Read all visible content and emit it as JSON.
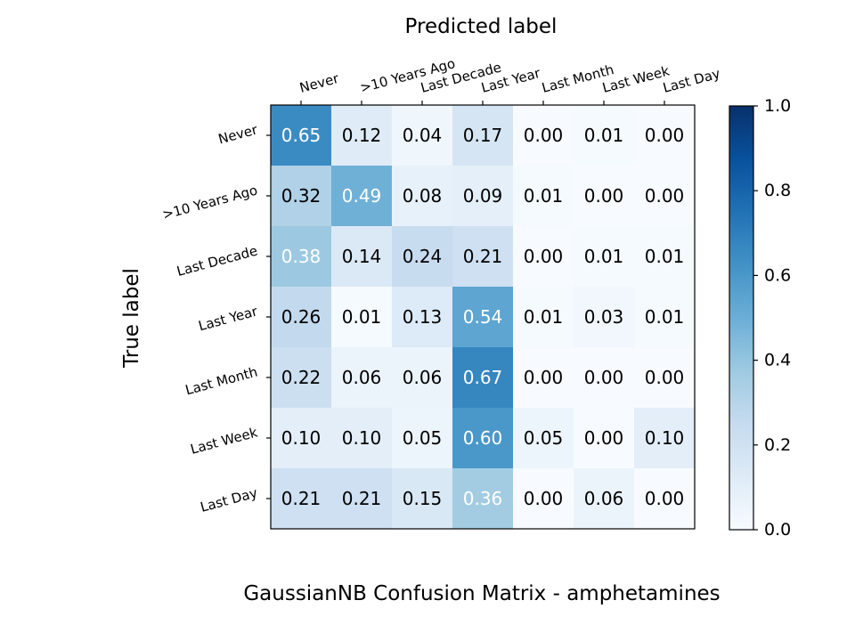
{
  "chart_data": {
    "type": "heatmap",
    "title": "GaussianNB Confusion Matrix - amphetamines",
    "xlabel": "Predicted label",
    "ylabel": "True label",
    "x_categories": [
      "Never",
      ">10 Years Ago",
      "Last Decade",
      "Last Year",
      "Last Month",
      "Last Week",
      "Last Day"
    ],
    "y_categories": [
      "Never",
      ">10 Years Ago",
      "Last Decade",
      "Last Year",
      "Last Month",
      "Last Week",
      "Last Day"
    ],
    "values": [
      [
        0.65,
        0.12,
        0.04,
        0.17,
        0.0,
        0.01,
        0.0
      ],
      [
        0.32,
        0.49,
        0.08,
        0.09,
        0.01,
        0.0,
        0.0
      ],
      [
        0.38,
        0.14,
        0.24,
        0.21,
        0.0,
        0.01,
        0.01
      ],
      [
        0.26,
        0.01,
        0.13,
        0.54,
        0.01,
        0.03,
        0.01
      ],
      [
        0.22,
        0.06,
        0.06,
        0.67,
        0.0,
        0.0,
        0.0
      ],
      [
        0.1,
        0.1,
        0.05,
        0.6,
        0.05,
        0.0,
        0.1
      ],
      [
        0.21,
        0.21,
        0.15,
        0.36,
        0.0,
        0.06,
        0.0
      ]
    ],
    "colormap": "Blues",
    "colorbar": {
      "range": [
        0.0,
        1.0
      ],
      "ticks": [
        "0.0",
        "0.2",
        "0.4",
        "0.6",
        "0.8",
        "1.0"
      ]
    },
    "x_tick_position": "top",
    "grid": false
  }
}
